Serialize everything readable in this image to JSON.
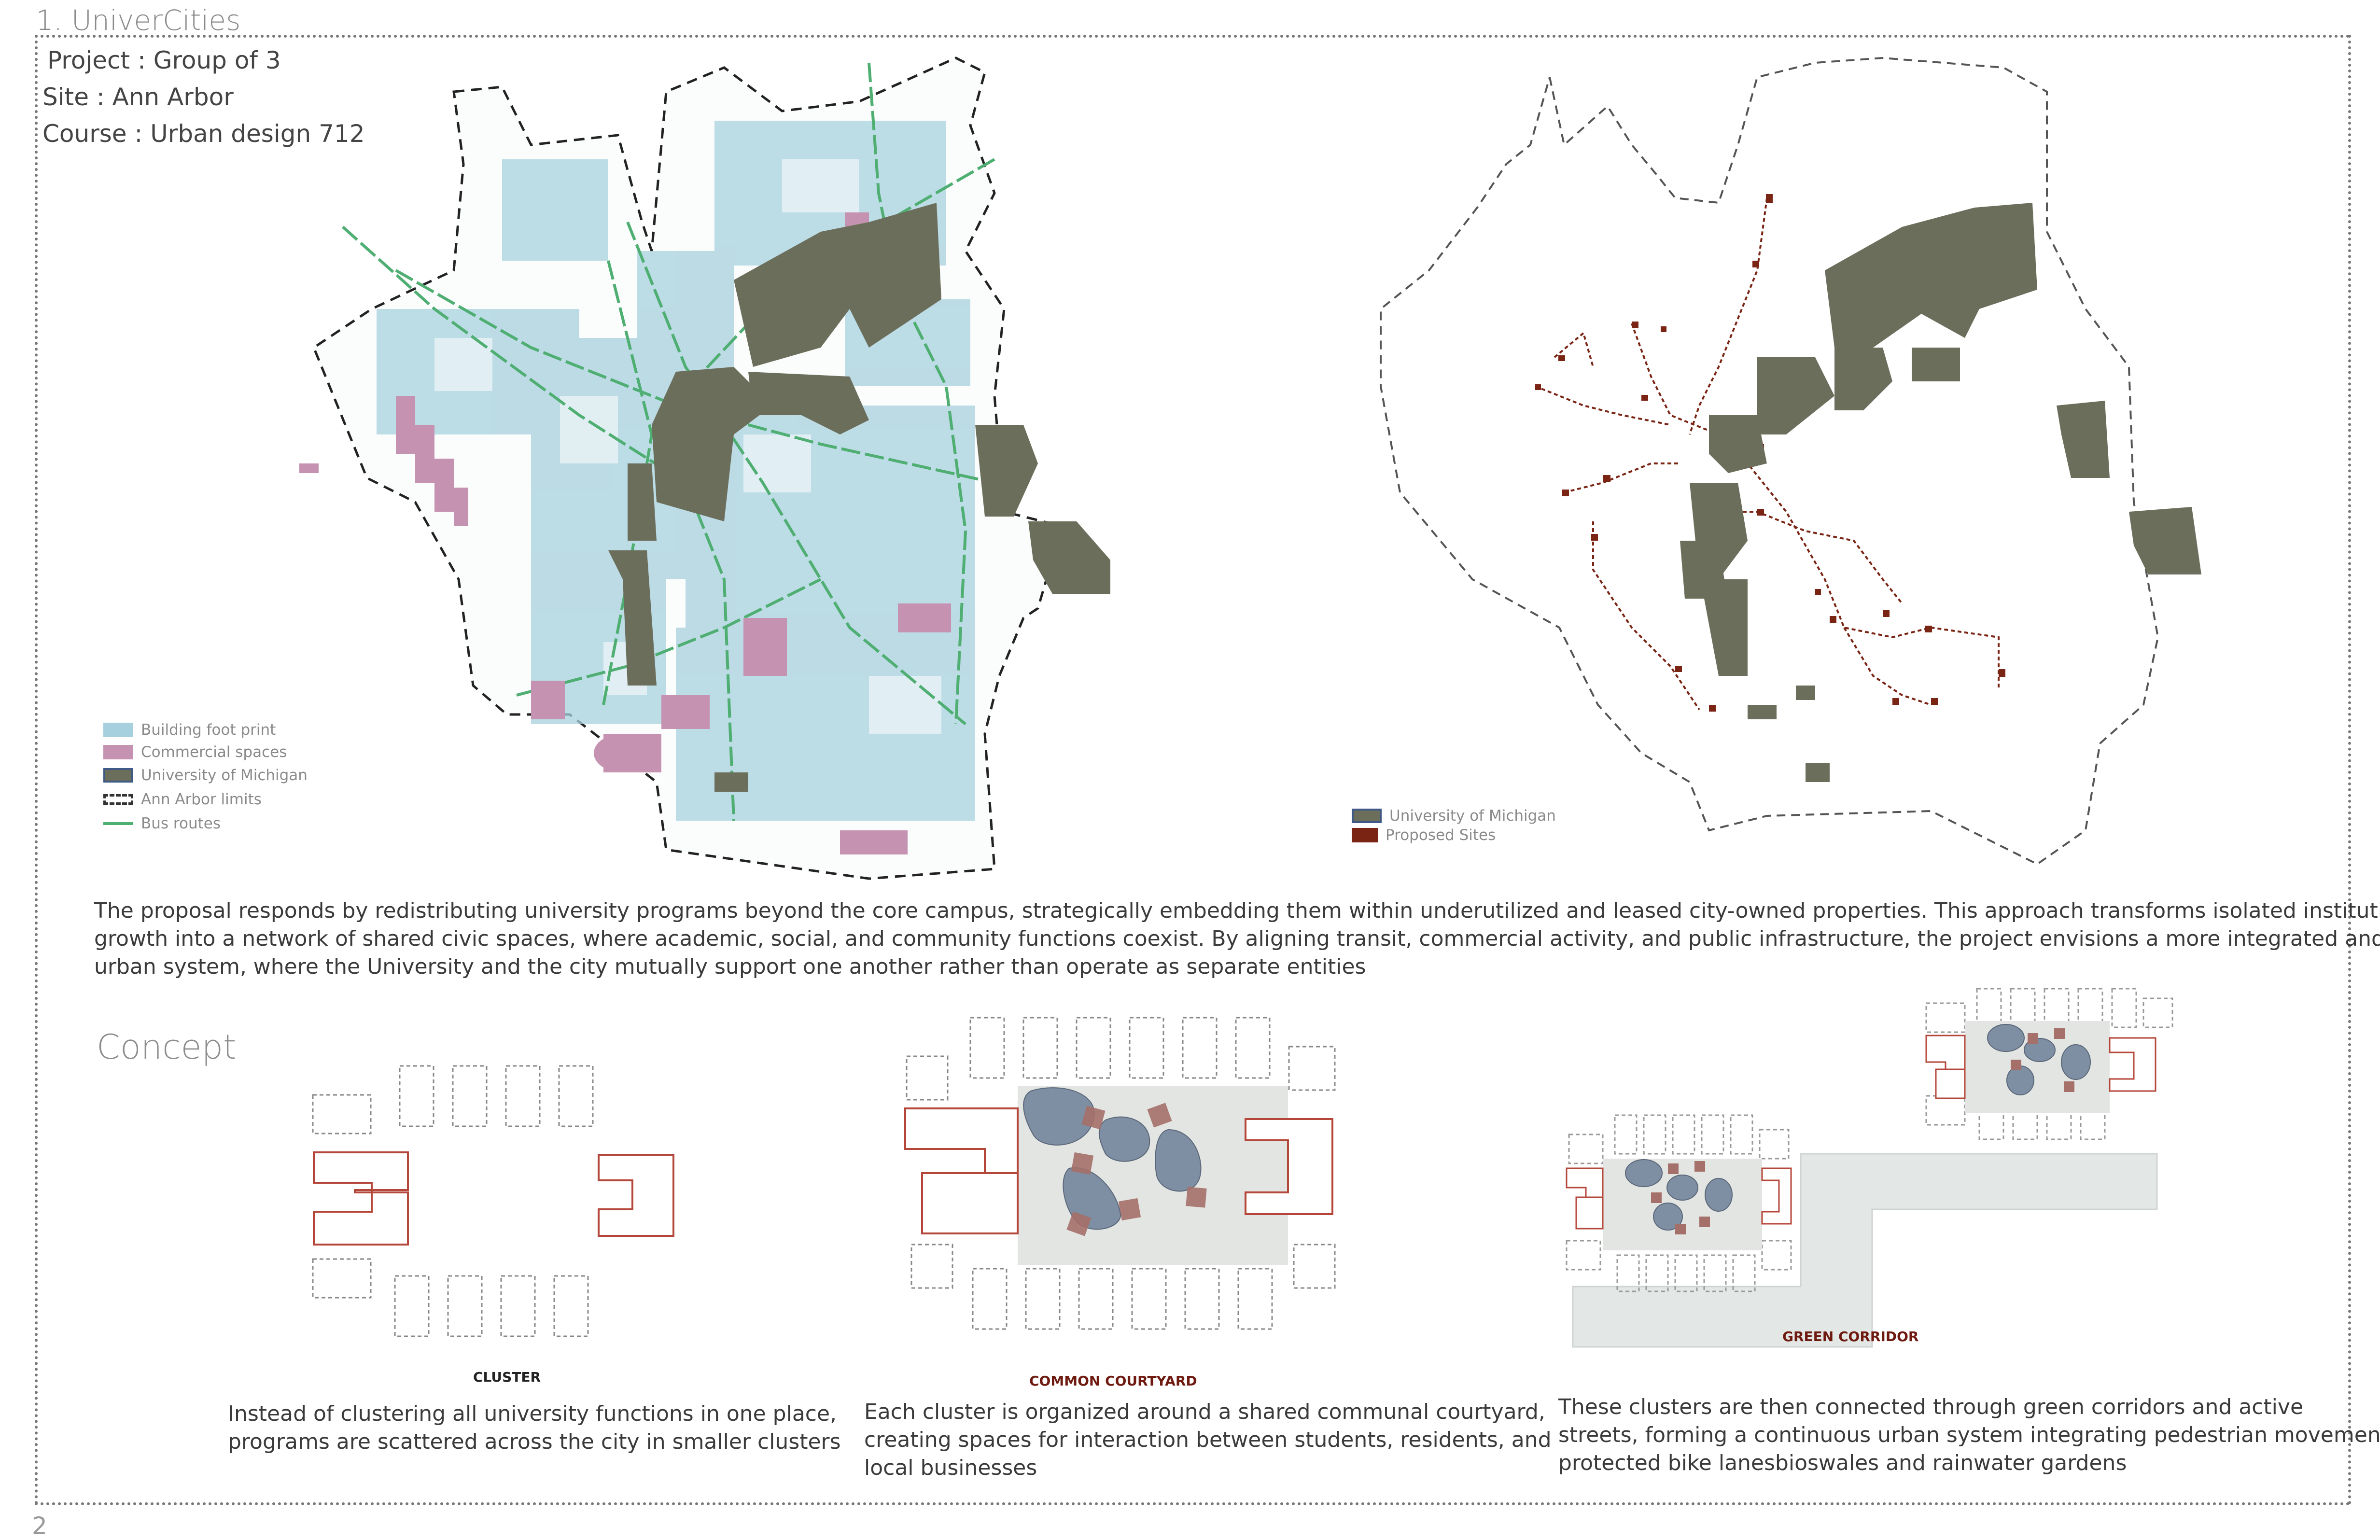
{
  "header": {
    "heading": "1. UniverCities",
    "project": "Project : Group of 3",
    "site": "Site : Ann Arbor",
    "course": "Course : Urban design 712"
  },
  "map_left": {
    "legend": [
      {
        "label": "Building foot print",
        "swatch": "building"
      },
      {
        "label": "Commercial spaces",
        "swatch": "commercial"
      },
      {
        "label": "University of Michigan",
        "swatch": "uofm"
      },
      {
        "label": "Ann Arbor limits",
        "swatch": "limits"
      },
      {
        "label": "Bus routes",
        "swatch": "bus"
      }
    ]
  },
  "map_right": {
    "legend": [
      {
        "label": "University of Michigan",
        "swatch": "uofm"
      },
      {
        "label": "Proposed Sites",
        "swatch": "proposed"
      }
    ]
  },
  "paragraph": {
    "lines": [
      "The proposal responds by redistributing university programs beyond the core campus, strategically embedding them within underutilized and leased city-owned properties. This approach transforms isolated institutional",
      " growth into a network of shared civic spaces, where academic, social, and community functions coexist. By aligning transit, commercial activity, and public infrastructure, the project envisions a more integrated and equitable",
      "urban system, where the University and the city mutually support one another rather than operate as separate entities"
    ]
  },
  "concept": {
    "title": "Concept",
    "panels": [
      {
        "caption_title": "CLUSTER",
        "text_lines": [
          "Instead of clustering all university functions in one place,",
          "programs  are scattered across the city in smaller clusters"
        ]
      },
      {
        "caption_title": "COMMON COURTYARD",
        "text_lines": [
          "Each cluster is organized around a shared communal courtyard,",
          "creating spaces for interaction between students, residents, and",
          " local businesses"
        ]
      },
      {
        "caption_title": "GREEN CORRIDOR",
        "text_lines": [
          "These clusters are then connected through green corridors and active",
          " streets, forming a continuous urban system integrating pedestrian movement,",
          " protected bike lanesbioswales and rainwater gardens"
        ]
      }
    ]
  },
  "page_number": "2",
  "colors": {
    "uofm": "#6c6e5c",
    "building": "#a7d0de",
    "commercial": "#c593b1",
    "bus": "#4fae72",
    "proposed": "#7a2414",
    "cluster_outline": "#b5473a",
    "courtyard": "#e3e5e3",
    "blob": "#7e8ea3",
    "node": "#a6706a",
    "caption_title": "#6e1a10"
  }
}
